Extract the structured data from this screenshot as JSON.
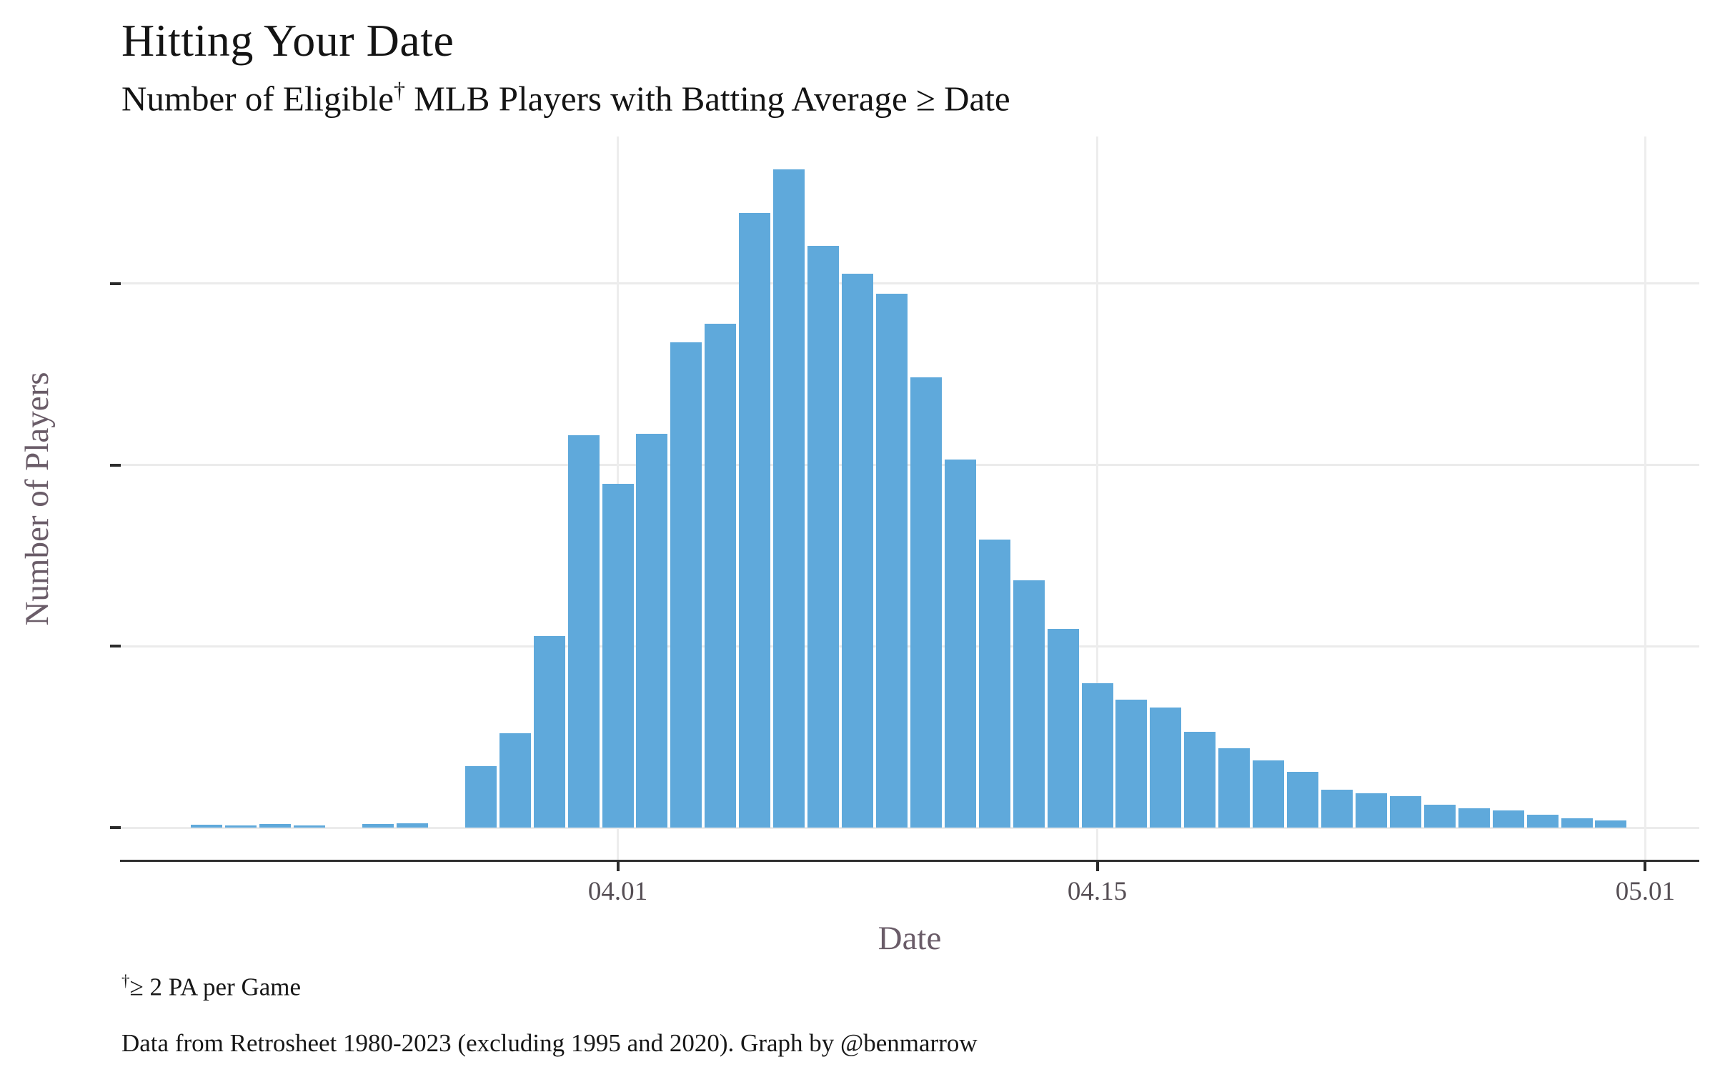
{
  "header": {
    "title": "Hitting Your Date",
    "subtitle": {
      "prefix": "Number of Eligible",
      "sup": "†",
      "suffix": " MLB Players with Batting Average ≥ Date"
    }
  },
  "y_axis": {
    "title": "Number of Players",
    "tick_values": [
      0,
      250,
      500,
      750
    ]
  },
  "x_axis": {
    "title": "Date",
    "tick_labels": [
      "04.01",
      "04.15",
      "05.01"
    ]
  },
  "footnote": {
    "sup": "†",
    "text": "≥ 2 PA per Game"
  },
  "caption": "Data from Retrosheet 1980-2023 (excluding 1995 and 2020). Graph by @benmarrow",
  "colors": {
    "bar": "#5FA9DB",
    "grid": "#ebebeb",
    "axis_line": "#2f2f2f",
    "tick_label": "#564f55",
    "axis_title": "#6a5c68",
    "text": "#141414"
  },
  "chart_data": {
    "type": "bar",
    "title": "Hitting Your Date",
    "subtitle": "Number of Eligible† MLB Players with Batting Average ≥ Date",
    "xlabel": "Date",
    "ylabel": "Number of Players",
    "x": [
      "03.20",
      "03.21",
      "03.22",
      "03.23",
      "03.24",
      "03.25",
      "03.26",
      "03.27",
      "03.28",
      "03.29",
      "03.30",
      "03.31",
      "04.01",
      "04.02",
      "04.03",
      "04.04",
      "04.05",
      "04.06",
      "04.07",
      "04.08",
      "04.09",
      "04.10",
      "04.11",
      "04.12",
      "04.13",
      "04.14",
      "04.15",
      "04.16",
      "04.17",
      "04.18",
      "04.19",
      "04.20",
      "04.21",
      "04.22",
      "04.23",
      "04.24",
      "04.25",
      "04.26",
      "04.27",
      "04.28",
      "04.29",
      "04.30"
    ],
    "values": [
      4,
      3,
      5,
      3,
      0,
      5,
      6,
      0,
      85,
      130,
      264,
      541,
      474,
      543,
      669,
      695,
      848,
      908,
      802,
      764,
      736,
      621,
      508,
      397,
      341,
      274,
      199,
      176,
      166,
      132,
      109,
      93,
      77,
      52,
      47,
      43,
      32,
      27,
      24,
      18,
      13,
      10
    ],
    "xticks": [
      "04.01",
      "04.15",
      "05.01"
    ],
    "yticks": [
      0,
      250,
      500,
      750
    ],
    "ylim": [
      0,
      950
    ],
    "grid": true,
    "legend": false
  }
}
